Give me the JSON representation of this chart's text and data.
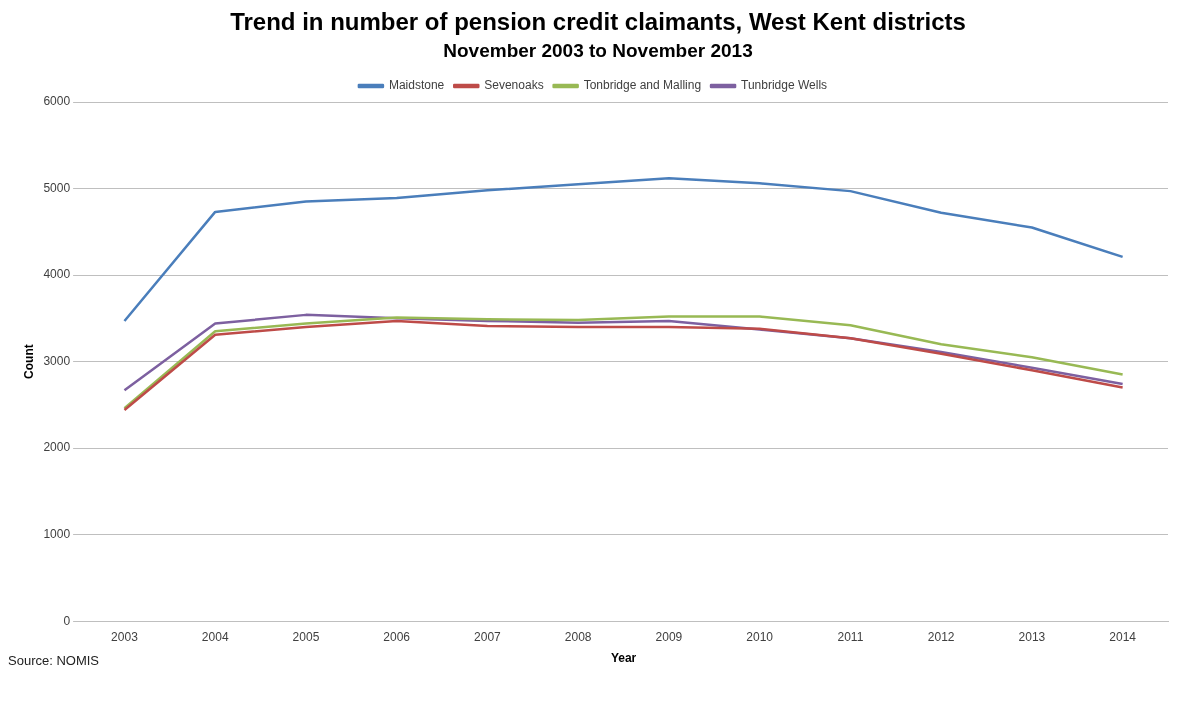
{
  "chart_data": {
    "type": "line",
    "title": "Trend in number of pension credit claimants, West Kent districts",
    "subtitle": "November 2003 to November 2013",
    "xlabel": "Year",
    "ylabel": "Count",
    "categories": [
      "2003",
      "2004",
      "2005",
      "2006",
      "2007",
      "2008",
      "2009",
      "2010",
      "2011",
      "2012",
      "2013",
      "2014"
    ],
    "series": [
      {
        "name": "Maidstone",
        "color": "#4a7ebb",
        "values": [
          3470,
          4730,
          4850,
          4890,
          4980,
          5050,
          5120,
          5060,
          4970,
          4720,
          4550,
          4210
        ]
      },
      {
        "name": "Sevenoaks",
        "color": "#be4b48",
        "values": [
          2440,
          3310,
          3400,
          3470,
          3410,
          3400,
          3400,
          3380,
          3270,
          3090,
          2900,
          2700
        ]
      },
      {
        "name": "Tonbridge and Malling",
        "color": "#98b954",
        "values": [
          2460,
          3350,
          3440,
          3510,
          3490,
          3480,
          3520,
          3520,
          3420,
          3200,
          3050,
          2850
        ]
      },
      {
        "name": "Tunbridge Wells",
        "color": "#7d60a0",
        "values": [
          2670,
          3440,
          3540,
          3500,
          3470,
          3450,
          3470,
          3370,
          3270,
          3110,
          2930,
          2740
        ]
      }
    ],
    "ylim": [
      0,
      6000
    ],
    "yticks": [
      0,
      1000,
      2000,
      3000,
      4000,
      5000,
      6000
    ],
    "grid": "y",
    "legend": "top",
    "marker": "none",
    "line_style": "solid",
    "annotations": [
      "Source: NOMIS"
    ]
  }
}
